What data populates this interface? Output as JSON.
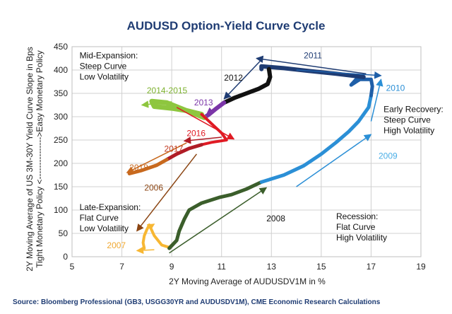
{
  "chart_data": {
    "type": "line",
    "title": "AUDUSD Option-Yield Curve Cycle",
    "xlabel": "2Y Moving Average of AUDUSDV1M in %",
    "ylabel_line1": "2Y Moving Average of US 3M-30Y Yield Curve Slope in Bps",
    "ylabel_line2": "Tight Monetary Policy <--------------->Easy Monetary Policy",
    "xlim": [
      5,
      19
    ],
    "ylim": [
      0,
      450
    ],
    "xticks": [
      "5",
      "7",
      "9",
      "11",
      "13",
      "15",
      "17",
      "19"
    ],
    "yticks": [
      "0",
      "50",
      "100",
      "150",
      "200",
      "250",
      "300",
      "350",
      "400",
      "450"
    ],
    "grid": true,
    "source": "Source: Bloomberg Professional (GB3, USGG30YR and AUDUSDV1M), CME Economic Research Calculations",
    "series": [
      {
        "name": "2007",
        "color": "#f7b733",
        "width": 4,
        "label_color": "#f0a830",
        "points": [
          [
            7.9,
            18
          ],
          [
            7.85,
            30
          ],
          [
            7.9,
            45
          ],
          [
            8.0,
            58
          ],
          [
            8.1,
            68
          ],
          [
            8.3,
            45
          ],
          [
            8.6,
            25
          ],
          [
            8.9,
            20
          ],
          [
            9.1,
            30
          ]
        ]
      },
      {
        "name": "2008",
        "color": "#3b5e2b",
        "width": 5,
        "label_color": "#111111",
        "points": [
          [
            8.9,
            18
          ],
          [
            9.2,
            35
          ],
          [
            9.3,
            55
          ],
          [
            9.5,
            80
          ],
          [
            9.7,
            100
          ],
          [
            10.2,
            115
          ],
          [
            10.9,
            127
          ],
          [
            11.4,
            133
          ],
          [
            12.0,
            145
          ],
          [
            12.6,
            160
          ]
        ]
      },
      {
        "name": "2009",
        "color": "#2b8fd6",
        "width": 5,
        "label_color": "#4aaee6",
        "points": [
          [
            12.6,
            160
          ],
          [
            13.5,
            175
          ],
          [
            14.3,
            195
          ],
          [
            15.0,
            220
          ],
          [
            15.6,
            245
          ],
          [
            16.1,
            268
          ],
          [
            16.5,
            290
          ],
          [
            16.9,
            320
          ],
          [
            17.0,
            345
          ]
        ]
      },
      {
        "name": "2010",
        "color": "#1f5fa8",
        "width": 5,
        "label_color": "#2b8fd6",
        "points": [
          [
            17.0,
            345
          ],
          [
            17.05,
            365
          ],
          [
            17.0,
            380
          ],
          [
            16.4,
            380
          ],
          [
            16.2,
            368
          ],
          [
            16.7,
            385
          ]
        ]
      },
      {
        "name": "2011",
        "color": "#1f3c73",
        "width": 6,
        "label_color": "#1f3c73",
        "points": [
          [
            16.7,
            385
          ],
          [
            15.6,
            392
          ],
          [
            14.5,
            398
          ],
          [
            13.5,
            404
          ],
          [
            12.6,
            408
          ],
          [
            12.6,
            402
          ]
        ]
      },
      {
        "name": "2012",
        "color": "#111111",
        "width": 6,
        "label_color": "#111111",
        "points": [
          [
            12.9,
            402
          ],
          [
            12.95,
            385
          ],
          [
            12.85,
            370
          ],
          [
            12.5,
            360
          ],
          [
            12.0,
            350
          ],
          [
            11.5,
            340
          ],
          [
            11.1,
            330
          ]
        ]
      },
      {
        "name": "2013",
        "color": "#7b35a8",
        "width": 6,
        "label_color": "#7b35a8",
        "points": [
          [
            11.1,
            330
          ],
          [
            10.8,
            318
          ],
          [
            10.5,
            305
          ],
          [
            10.3,
            298
          ]
        ]
      },
      {
        "name": "2014-2015",
        "color": "#8ec63f",
        "width": 7,
        "label_color": "#7db12f",
        "points": [
          [
            10.3,
            298
          ],
          [
            9.5,
            315
          ],
          [
            8.8,
            330
          ],
          [
            8.2,
            333
          ],
          [
            8.3,
            322
          ],
          [
            9.0,
            318
          ],
          [
            9.6,
            313
          ],
          [
            10.2,
            305
          ]
        ]
      },
      {
        "name": "2016",
        "color": "#e01b24",
        "width": 4,
        "label_color": "#e01b24",
        "points": [
          [
            10.2,
            305
          ],
          [
            10.6,
            285
          ],
          [
            11.0,
            265
          ],
          [
            11.2,
            250
          ],
          [
            10.6,
            245
          ],
          [
            10.2,
            240
          ]
        ]
      },
      {
        "name": "2017",
        "color": "#b01c26",
        "width": 5,
        "label_color": "#c23b22",
        "points": [
          [
            10.2,
            240
          ],
          [
            9.7,
            232
          ],
          [
            9.2,
            220
          ],
          [
            8.8,
            208
          ]
        ]
      },
      {
        "name": "2018",
        "color": "#c8691e",
        "width": 5,
        "label_color": "#c8691e",
        "points": [
          [
            8.8,
            208
          ],
          [
            8.4,
            196
          ],
          [
            7.8,
            185
          ],
          [
            7.3,
            178
          ]
        ]
      }
    ],
    "arrows": [
      {
        "color": "#f7b733",
        "from": [
          8.0,
          60
        ],
        "to": [
          8.3,
          70
        ]
      },
      {
        "color": "#f7b733",
        "from": [
          8.3,
          15
        ],
        "to": [
          7.6,
          13
        ]
      },
      {
        "color": "#3b5e2b",
        "from": [
          8.9,
          8
        ],
        "to": [
          12.8,
          148
        ]
      },
      {
        "color": "#2b8fd6",
        "from": [
          14.0,
          150
        ],
        "to": [
          17.0,
          262
        ]
      },
      {
        "color": "#2b8fd6",
        "from": [
          17.0,
          290
        ],
        "to": [
          17.4,
          380
        ]
      },
      {
        "color": "#1f5fa8",
        "from": [
          14.0,
          400
        ],
        "to": [
          17.4,
          388
        ]
      },
      {
        "color": "#1f3c73",
        "from": [
          16.8,
          392
        ],
        "to": [
          12.4,
          425
        ]
      },
      {
        "color": "#1f3c73",
        "from": [
          12.6,
          422
        ],
        "to": [
          11.1,
          338
        ]
      },
      {
        "color": "#7b35a8",
        "from": [
          10.9,
          326
        ],
        "to": [
          10.4,
          305
        ]
      },
      {
        "color": "#8ec63f",
        "from": [
          9.0,
          332
        ],
        "to": [
          7.8,
          325
        ]
      },
      {
        "color": "#e01b24",
        "from": [
          9.2,
          320
        ],
        "to": [
          11.5,
          252
        ]
      },
      {
        "color": "#b01c26",
        "from": [
          11.0,
          256
        ],
        "to": [
          9.5,
          248
        ]
      },
      {
        "color": "#c8691e",
        "from": [
          9.6,
          244
        ],
        "to": [
          7.2,
          180
        ]
      },
      {
        "color": "#8b4513",
        "from": [
          10.0,
          220
        ],
        "to": [
          7.6,
          55
        ]
      }
    ],
    "year_labels": [
      {
        "text": "2007",
        "x": 6.4,
        "y": 18,
        "color": "#f0a830"
      },
      {
        "text": "2008",
        "x": 12.8,
        "y": 76,
        "color": "#111111"
      },
      {
        "text": "2009",
        "x": 17.3,
        "y": 210,
        "color": "#4aaee6"
      },
      {
        "text": "2010",
        "x": 17.6,
        "y": 355,
        "color": "#2b8fd6"
      },
      {
        "text": "2011",
        "x": 14.3,
        "y": 425,
        "color": "#1f3c73"
      },
      {
        "text": "2012",
        "x": 11.1,
        "y": 377,
        "color": "#111111"
      },
      {
        "text": "2013",
        "x": 9.9,
        "y": 324,
        "color": "#7b35a8"
      },
      {
        "text": "2014-2015",
        "x": 8.0,
        "y": 350,
        "color": "#7db12f"
      },
      {
        "text": "2016",
        "x": 9.6,
        "y": 258,
        "color": "#e01b24"
      },
      {
        "text": "2017",
        "x": 8.7,
        "y": 225,
        "color": "#c23b22"
      },
      {
        "text": "2018",
        "x": 7.3,
        "y": 185,
        "color": "#c8691e"
      },
      {
        "text": "2006",
        "x": 7.9,
        "y": 142,
        "color": "#8b4513"
      }
    ],
    "annotations": [
      {
        "lines": [
          "Mid-Expansion:",
          "Steep Curve",
          "Low Volatility"
        ],
        "x": 5.3,
        "y": 425,
        "anchor": "start"
      },
      {
        "lines": [
          "Early Recovery:",
          "Steep Curve",
          "High Volatility"
        ],
        "x": 17.5,
        "y": 310,
        "anchor": "start"
      },
      {
        "lines": [
          "Late-Expansion:",
          "Flat Curve",
          "Low Volatility"
        ],
        "x": 5.3,
        "y": 100,
        "anchor": "start"
      },
      {
        "lines": [
          "Recession:",
          "Flat Curve",
          "High Volatility"
        ],
        "x": 15.6,
        "y": 80,
        "anchor": "start"
      }
    ]
  }
}
